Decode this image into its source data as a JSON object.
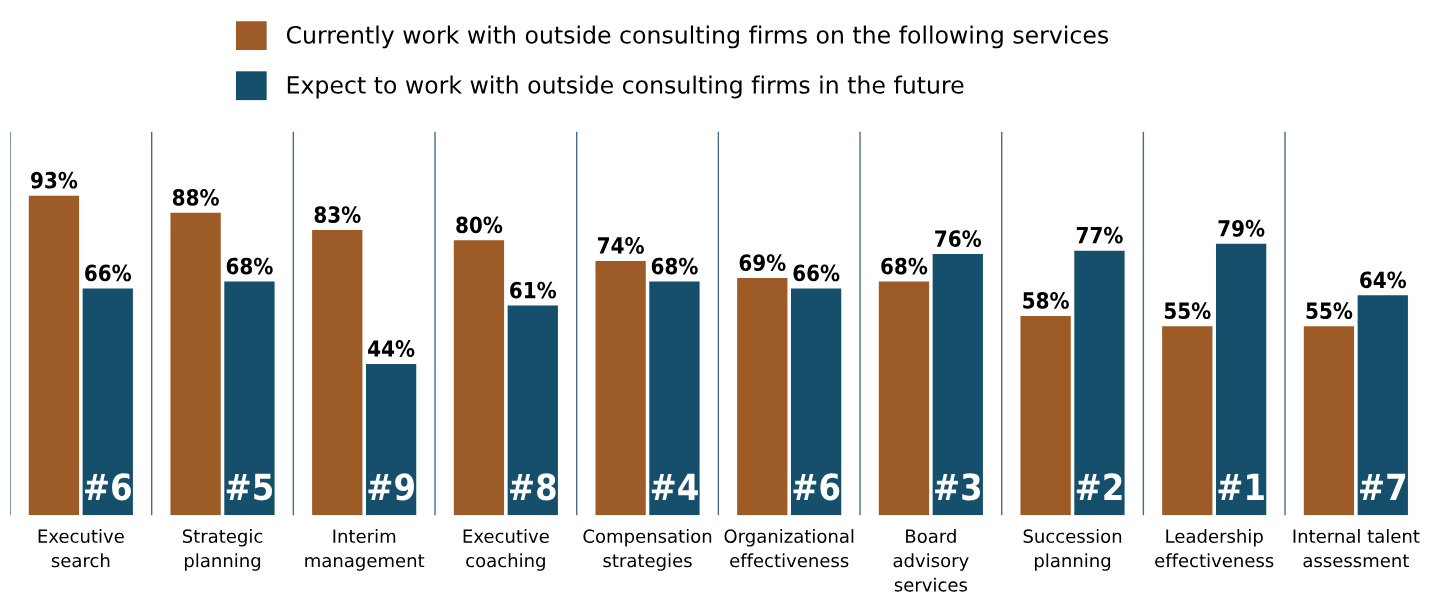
{
  "chart_data": {
    "type": "bar",
    "categories": [
      "Executive\nsearch",
      "Strategic\nplanning",
      "Interim\nmanagement",
      "Executive\ncoaching",
      "Compensation\nstrategies",
      "Organizational\neffectiveness",
      "Board\nadvisory\nservices",
      "Succession\nplanning",
      "Leadership\neffectiveness",
      "Internal talent\nassessment"
    ],
    "series": [
      {
        "name": "Currently work with outside consulting firms on the following services",
        "color": "#9c5b27",
        "values": [
          93,
          88,
          83,
          80,
          74,
          69,
          68,
          58,
          55,
          55
        ],
        "value_labels": [
          "93%",
          "88%",
          "83%",
          "80%",
          "74%",
          "69%",
          "68%",
          "58%",
          "55%",
          "55%"
        ]
      },
      {
        "name": "Expect to work with outside consulting firms in the future",
        "color": "#154f6b",
        "values": [
          66,
          68,
          44,
          61,
          68,
          66,
          76,
          77,
          79,
          64
        ],
        "value_labels": [
          "66%",
          "68%",
          "44%",
          "61%",
          "68%",
          "66%",
          "76%",
          "77%",
          "79%",
          "64%"
        ]
      }
    ],
    "annotations": [
      {
        "text": "#6",
        "x": "Executive\nsearch"
      },
      {
        "text": "#5",
        "x": "Strategic\nplanning"
      },
      {
        "text": "#9",
        "x": "Interim\nmanagement"
      },
      {
        "text": "#8",
        "x": "Executive\ncoaching"
      },
      {
        "text": "#4",
        "x": "Compensation\nstrategies"
      },
      {
        "text": "#6",
        "x": "Organizational\neffectiveness"
      },
      {
        "text": "#3",
        "x": "Board\nadvisory\nservices"
      },
      {
        "text": "#2",
        "x": "Succession\nplanning"
      },
      {
        "text": "#1",
        "x": "Leadership\neffectiveness"
      },
      {
        "text": "#7",
        "x": "Internal talent\nassessment"
      }
    ],
    "grid": "x",
    "legend": "top"
  }
}
